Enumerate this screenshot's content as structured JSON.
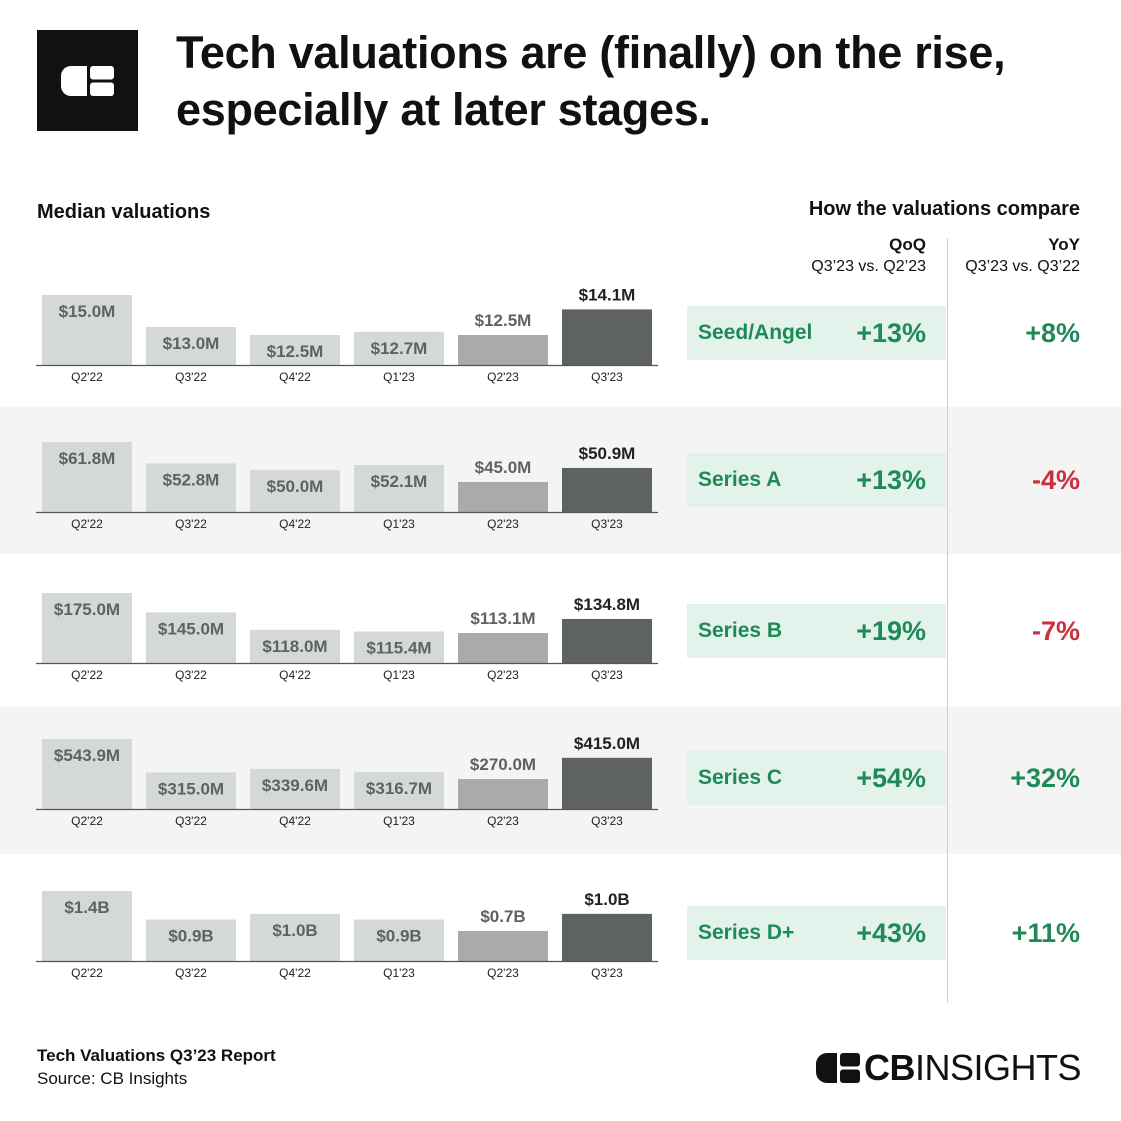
{
  "header": {
    "title_line1": "Tech valuations are (finally) on the rise,",
    "title_line2": "especially at later stages."
  },
  "sections": {
    "left_label": "Median valuations",
    "right_label": "How the valuations compare",
    "qoq_head": "QoQ",
    "qoq_sub": "Q3’23 vs. Q2’23",
    "yoy_head": "YoY",
    "yoy_sub": "Q3’23 vs. Q3’22"
  },
  "colors": {
    "bar_past": "#d5d8d8",
    "bar_prev": "#a9aaab",
    "bar_current": "#5f6263",
    "label_past": "#5f6263",
    "label_current": "#222222",
    "positive": "#1e8a57",
    "negative": "#c8303f",
    "compare_bg": "#e3f2ea",
    "band_alt": "#f4f4f4"
  },
  "chart_data": [
    {
      "type": "bar",
      "stage": "Seed/Angel",
      "categories": [
        "Q2'22",
        "Q3'22",
        "Q4'22",
        "Q1'23",
        "Q2'23",
        "Q3'23"
      ],
      "values": [
        15.0,
        13.0,
        12.5,
        12.7,
        12.5,
        14.1
      ],
      "unit": "M",
      "value_labels": [
        "$15.0M",
        "$13.0M",
        "$12.5M",
        "$12.7M",
        "$12.5M",
        "$14.1M"
      ],
      "qoq": "+13%",
      "yoy": "+8%",
      "yoy_sign": "positive"
    },
    {
      "type": "bar",
      "stage": "Series A",
      "categories": [
        "Q2'22",
        "Q3'22",
        "Q4'22",
        "Q1'23",
        "Q2'23",
        "Q3'23"
      ],
      "values": [
        61.8,
        52.8,
        50.0,
        52.1,
        45.0,
        50.9
      ],
      "unit": "M",
      "value_labels": [
        "$61.8M",
        "$52.8M",
        "$50.0M",
        "$52.1M",
        "$45.0M",
        "$50.9M"
      ],
      "qoq": "+13%",
      "yoy": "-4%",
      "yoy_sign": "negative"
    },
    {
      "type": "bar",
      "stage": "Series B",
      "categories": [
        "Q2'22",
        "Q3'22",
        "Q4'22",
        "Q1'23",
        "Q2'23",
        "Q3'23"
      ],
      "values": [
        175.0,
        145.0,
        118.0,
        115.4,
        113.1,
        134.8
      ],
      "unit": "M",
      "value_labels": [
        "$175.0M",
        "$145.0M",
        "$118.0M",
        "$115.4M",
        "$113.1M",
        "$134.8M"
      ],
      "qoq": "+19%",
      "yoy": "-7%",
      "yoy_sign": "negative"
    },
    {
      "type": "bar",
      "stage": "Series C",
      "categories": [
        "Q2'22",
        "Q3'22",
        "Q4'22",
        "Q1'23",
        "Q2'23",
        "Q3'23"
      ],
      "values": [
        543.9,
        315.0,
        339.6,
        316.7,
        270.0,
        415.0
      ],
      "unit": "M",
      "value_labels": [
        "$543.9M",
        "$315.0M",
        "$339.6M",
        "$316.7M",
        "$270.0M",
        "$415.0M"
      ],
      "qoq": "+54%",
      "yoy": "+32%",
      "yoy_sign": "positive"
    },
    {
      "type": "bar",
      "stage": "Series D+",
      "categories": [
        "Q2'22",
        "Q3'22",
        "Q4'22",
        "Q1'23",
        "Q2'23",
        "Q3'23"
      ],
      "values": [
        1.4,
        0.9,
        1.0,
        0.9,
        0.7,
        1.0
      ],
      "unit": "B",
      "value_labels": [
        "$1.4B",
        "$0.9B",
        "$1.0B",
        "$0.9B",
        "$0.7B",
        "$1.0B"
      ],
      "qoq": "+43%",
      "yoy": "+11%",
      "yoy_sign": "positive"
    }
  ],
  "footer": {
    "report_title": "Tech Valuations Q3’23 Report",
    "source": "Source: CB Insights",
    "brand_bold": "CB",
    "brand_light": "INSIGHTS"
  }
}
